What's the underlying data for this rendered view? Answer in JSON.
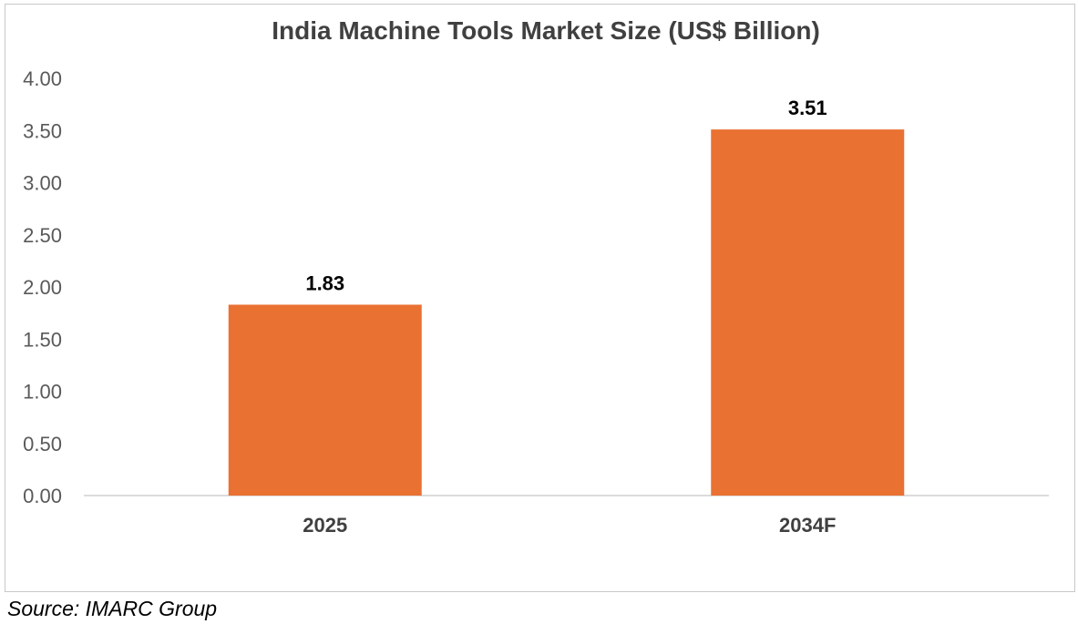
{
  "chart_data": {
    "type": "bar",
    "title": "India Machine Tools Market Size (US$ Billion)",
    "categories": [
      "2025",
      "2034F"
    ],
    "values": [
      1.83,
      3.51
    ],
    "data_labels": [
      "1.83",
      "3.51"
    ],
    "ylim": [
      0,
      4
    ],
    "y_ticks": [
      "0.00",
      "0.50",
      "1.00",
      "1.50",
      "2.00",
      "2.50",
      "3.00",
      "3.50",
      "4.00"
    ],
    "y_tick_values": [
      0,
      0.5,
      1,
      1.5,
      2,
      2.5,
      3,
      3.5,
      4
    ],
    "grid": false,
    "legend": "none",
    "bar_color": "#E97132"
  },
  "source": "Source: IMARC Group"
}
